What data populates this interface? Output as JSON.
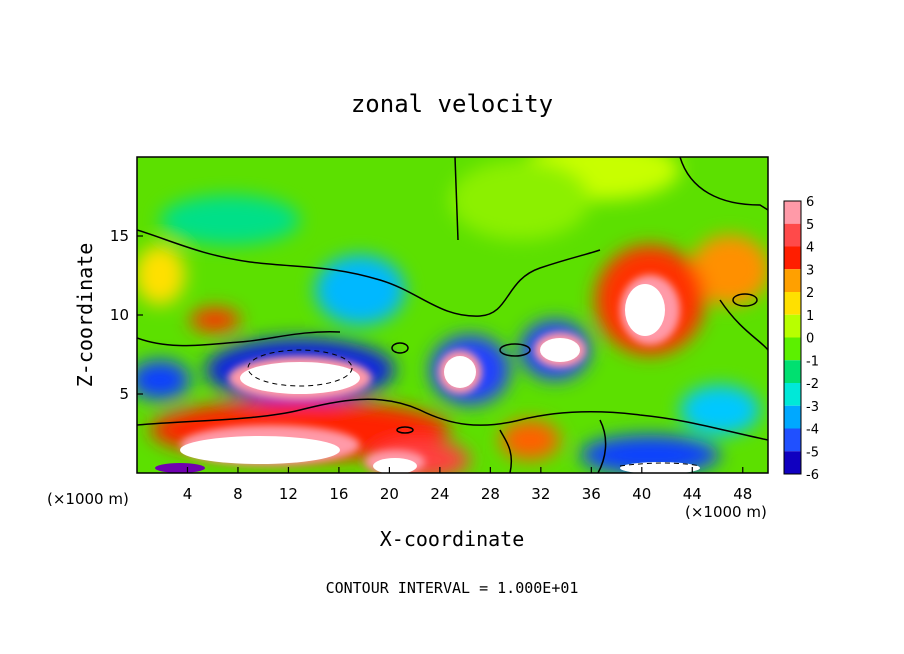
{
  "chart_data": {
    "type": "heatmap",
    "title": "zonal velocity",
    "xlabel": "X-coordinate",
    "ylabel": "Z-coordinate",
    "x_unit_label": "(×1000 m)",
    "x_unit_label_left": "(×1000 m)",
    "xlim": [
      0,
      50
    ],
    "ylim": [
      0,
      20
    ],
    "x_ticks": [
      4,
      8,
      12,
      16,
      20,
      24,
      28,
      32,
      36,
      40,
      44,
      48
    ],
    "y_ticks": [
      5,
      10,
      15
    ],
    "colorbar": {
      "levels": [
        6,
        5,
        4,
        3,
        2,
        1,
        0,
        -1,
        -2,
        -3,
        -4,
        -5,
        -6
      ],
      "colors": [
        "#ff9aa8",
        "#ff4a4a",
        "#ff1e00",
        "#ffa000",
        "#ffe000",
        "#b8ff00",
        "#5cf000",
        "#00e070",
        "#00e8d8",
        "#00a8ff",
        "#2050ff",
        "#1000c0",
        "#7000b0"
      ]
    },
    "footer": "CONTOUR INTERVAL = 1.000E+01"
  }
}
